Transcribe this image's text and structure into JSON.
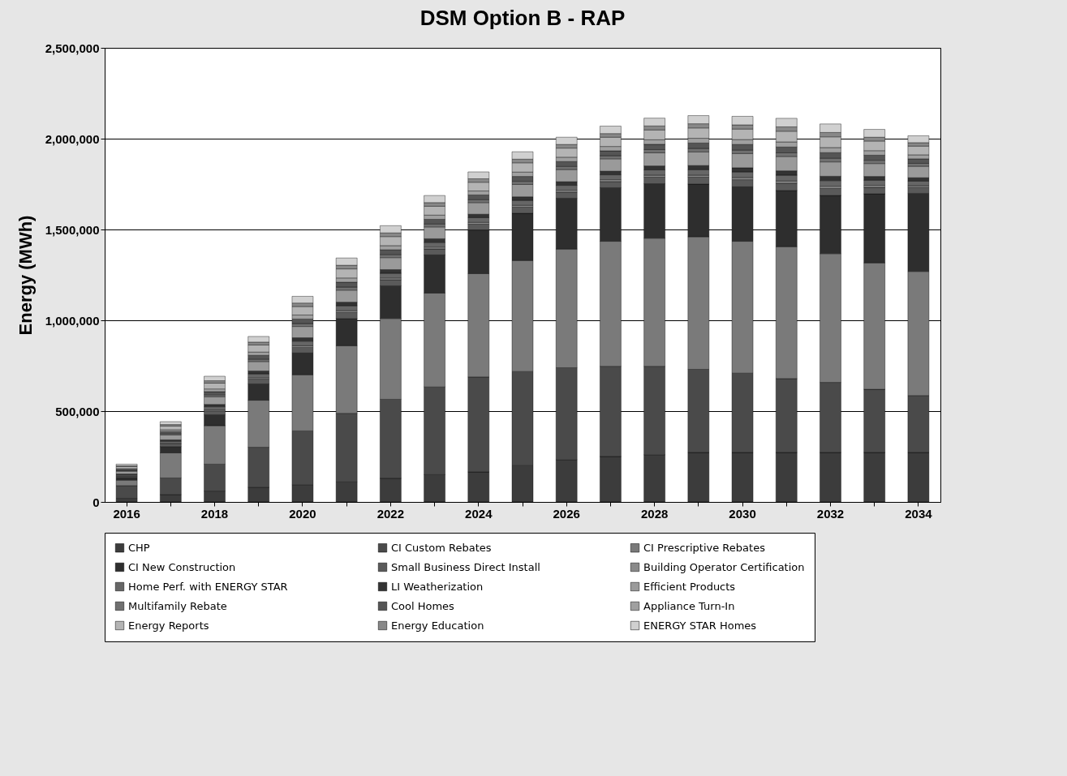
{
  "chart_data": {
    "type": "bar",
    "stacked": true,
    "title": "DSM Option B - RAP",
    "ylabel": "Energy (MWh)",
    "categories": [
      "2016",
      null,
      "2018",
      null,
      "2020",
      null,
      "2022",
      null,
      "2024",
      null,
      "2026",
      null,
      "2028",
      null,
      "2030",
      null,
      "2032",
      null,
      "2034"
    ],
    "ylim": [
      0,
      2500000
    ],
    "yticks": [
      {
        "value": 0,
        "label": "0"
      },
      {
        "value": 500000,
        "label": "500,000"
      },
      {
        "value": 1000000,
        "label": "1,000,000"
      },
      {
        "value": 1500000,
        "label": "1,500,000"
      },
      {
        "value": 2000000,
        "label": "2,000,000"
      },
      {
        "value": 2500000,
        "label": "2,500,000"
      }
    ],
    "grid": "y",
    "legend": "bottom",
    "series": [
      {
        "name": "CHP",
        "color": "#3c3c3c",
        "values": [
          20000,
          40000,
          60000,
          80000,
          95000,
          110000,
          130000,
          150000,
          165000,
          200000,
          233000,
          250000,
          260000,
          272000,
          272000,
          272000,
          272000,
          272000,
          272000
        ]
      },
      {
        "name": "CI Custom Rebates",
        "color": "#4a4a4a",
        "values": [
          70000,
          92000,
          148000,
          221000,
          296000,
          378000,
          435000,
          483000,
          523000,
          518000,
          506000,
          497000,
          487000,
          458000,
          437000,
          407000,
          386000,
          348000,
          314000
        ]
      },
      {
        "name": "CI Prescriptive Rebates",
        "color": "#7a7a7a",
        "values": [
          30000,
          138000,
          212000,
          259000,
          309000,
          372000,
          445000,
          517000,
          569000,
          611000,
          653000,
          688000,
          705000,
          730000,
          726000,
          726000,
          709000,
          696000,
          683000
        ]
      },
      {
        "name": "CI New Construction",
        "color": "#2e2e2e",
        "values": [
          15000,
          35000,
          60000,
          90000,
          120000,
          150000,
          180000,
          210000,
          240000,
          260000,
          280000,
          295000,
          300000,
          290000,
          300000,
          310000,
          320000,
          380000,
          430000
        ]
      },
      {
        "name": "Small Business Direct Install",
        "color": "#5a5a5a",
        "values": [
          7000,
          14000,
          21000,
          26000,
          31000,
          33000,
          33000,
          33000,
          32000,
          34000,
          34000,
          34000,
          36000,
          38000,
          39000,
          40000,
          39000,
          36000,
          32000
        ]
      },
      {
        "name": "Building Operator Certification",
        "color": "#8a8a8a",
        "values": [
          2000,
          4000,
          6000,
          8000,
          9000,
          10000,
          10000,
          10000,
          10000,
          10000,
          10000,
          10000,
          11000,
          11000,
          12000,
          12000,
          12000,
          11000,
          10000
        ]
      },
      {
        "name": "Home Perf. with ENERGY STAR",
        "color": "#666666",
        "values": [
          6000,
          11000,
          17000,
          21000,
          25000,
          27000,
          26000,
          26000,
          26000,
          27000,
          27000,
          27000,
          29000,
          30000,
          31000,
          32000,
          31000,
          28000,
          25000
        ]
      },
      {
        "name": "LI Weatherization",
        "color": "#333333",
        "values": [
          4000,
          8000,
          13000,
          16000,
          19000,
          20000,
          20000,
          20000,
          19000,
          20000,
          20000,
          20000,
          22000,
          23000,
          23000,
          24000,
          24000,
          21000,
          19000
        ]
      },
      {
        "name": "Efficient Products",
        "color": "#9a9a9a",
        "values": [
          15000,
          27000,
          42000,
          52000,
          62000,
          66000,
          66000,
          65000,
          64000,
          68000,
          67000,
          68000,
          72000,
          75000,
          78000,
          79000,
          79000,
          71000,
          63000
        ]
      },
      {
        "name": "Multifamily Rebate",
        "color": "#707070",
        "values": [
          4000,
          7000,
          11000,
          13000,
          16000,
          17000,
          17000,
          16000,
          16000,
          17000,
          17000,
          17000,
          18000,
          19000,
          19000,
          20000,
          20000,
          18000,
          16000
        ]
      },
      {
        "name": "Cool Homes",
        "color": "#555555",
        "values": [
          6000,
          11000,
          17000,
          21000,
          25000,
          27000,
          26000,
          26000,
          26000,
          27000,
          27000,
          27000,
          29000,
          30000,
          31000,
          32000,
          31000,
          28000,
          25000
        ]
      },
      {
        "name": "Appliance Turn-In",
        "color": "#a0a0a0",
        "values": [
          5000,
          10000,
          15000,
          18000,
          22000,
          23000,
          23000,
          23000,
          22000,
          24000,
          24000,
          24000,
          25000,
          26000,
          27000,
          28000,
          28000,
          25000,
          22000
        ]
      },
      {
        "name": "Energy Reports",
        "color": "#b4b4b4",
        "values": [
          11000,
          21000,
          32000,
          39000,
          47000,
          50000,
          50000,
          49000,
          48000,
          51000,
          50000,
          51000,
          54000,
          57000,
          58000,
          59000,
          59000,
          53000,
          48000
        ]
      },
      {
        "name": "Energy Education",
        "color": "#888888",
        "values": [
          4000,
          8000,
          13000,
          16000,
          19000,
          20000,
          20000,
          20000,
          19000,
          20000,
          20000,
          20000,
          22000,
          23000,
          23000,
          24000,
          24000,
          21000,
          19000
        ]
      },
      {
        "name": "ENERGY STAR Homes",
        "color": "#d0d0d0",
        "values": [
          9000,
          16000,
          25000,
          31000,
          37000,
          40000,
          40000,
          39000,
          38000,
          41000,
          40000,
          41000,
          43000,
          45000,
          47000,
          47000,
          47000,
          43000,
          38000
        ]
      }
    ]
  }
}
